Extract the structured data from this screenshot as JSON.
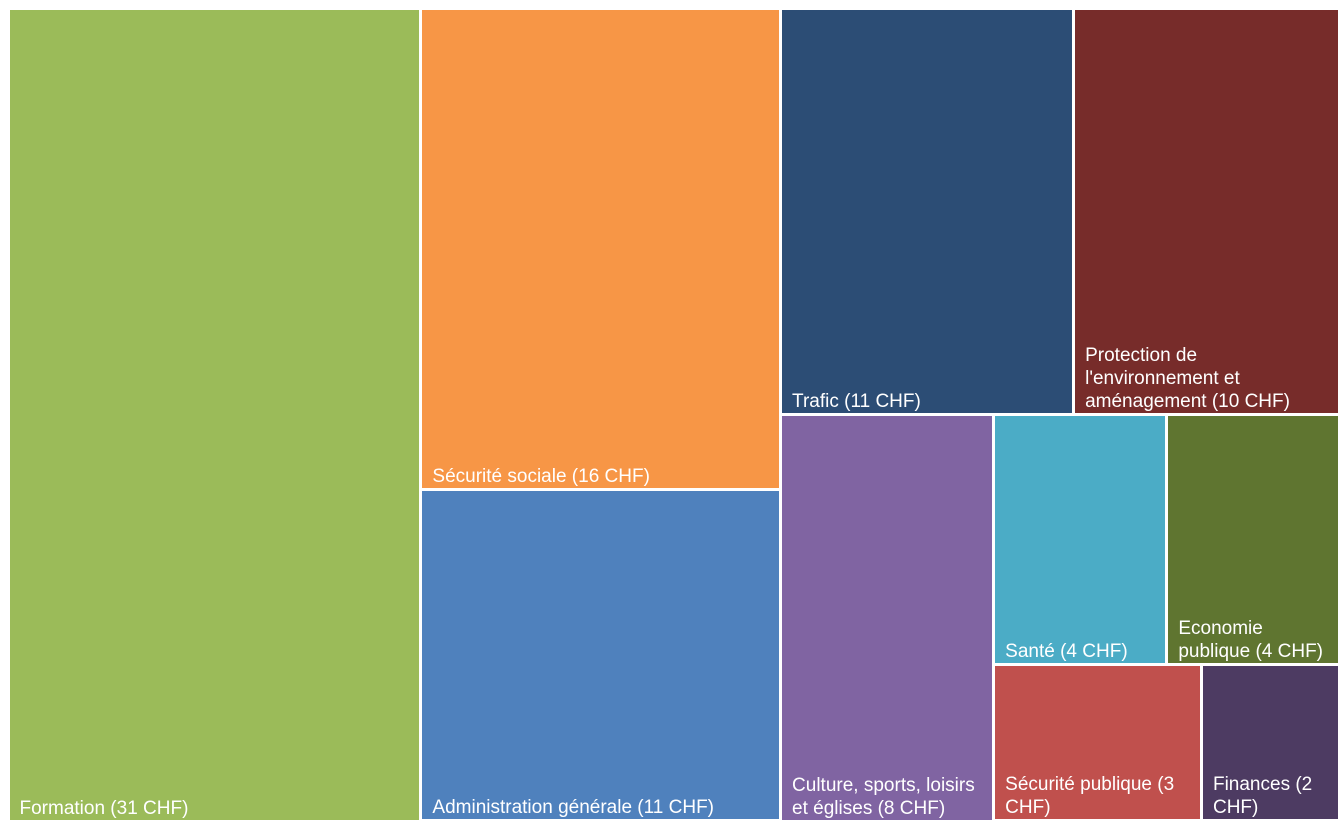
{
  "chart_data": {
    "type": "treemap",
    "categories": [
      "Formation (31 CHF)",
      "Sécurité sociale (16 CHF)",
      "Administration générale (11 CHF)",
      "Trafic (11 CHF)",
      "Protection de l'environnement et aménagement (10 CHF)",
      "Culture, sports, loisirs et églises (8 CHF)",
      "Santé (4 CHF)",
      "Economie publique (4 CHF)",
      "Sécurité publique (3 CHF)",
      "Finances (2 CHF)"
    ],
    "values": [
      31,
      16,
      11,
      11,
      10,
      8,
      4,
      4,
      3,
      2
    ],
    "colors": [
      "#9bbb59",
      "#f79646",
      "#4f81bd",
      "#2c4d75",
      "#772c2a",
      "#8064a2",
      "#4bacc6",
      "#5f7530",
      "#c0504d",
      "#4d3b62"
    ]
  }
}
